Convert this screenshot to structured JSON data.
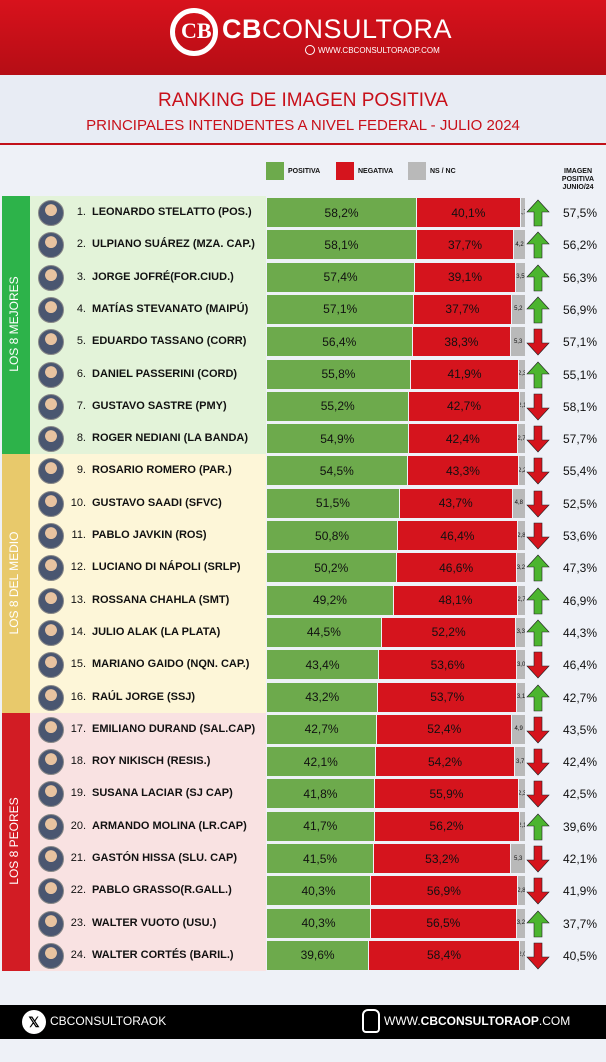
{
  "brand": {
    "bold": "CB",
    "light": "CONSULTORA",
    "web": "WWW.CBCONSULTORAOP.COM",
    "logo_letters": "CB"
  },
  "title": "RANKING DE IMAGEN POSITIVA",
  "subtitle": "PRINCIPALES INTENDENTES A NIVEL FEDERAL - JULIO 2024",
  "legend": {
    "positiva": "POSITIVA",
    "negativa": "NEGATIVA",
    "nsnc": "NS / NC"
  },
  "prev_header": [
    "IMAGEN",
    "POSITIVA",
    "JUNIO/24"
  ],
  "groups": [
    {
      "label": "LOS 8 MEJORES",
      "color": "#2db34a",
      "bg": "#e3f3d9"
    },
    {
      "label": "LOS 8 DEL MEDIO",
      "color": "#e8c96b",
      "bg": "#fdf6d8"
    },
    {
      "label": "LOS 8 PEORES",
      "color": "#d21c24",
      "bg": "#f9e2e2"
    }
  ],
  "colors": {
    "positiva": "#6daa4c",
    "negativa": "#d5141d",
    "nsnc": "#b9b9b9",
    "up": "#4cb52f",
    "down": "#d5141d"
  },
  "chart_data": {
    "type": "bar",
    "stacked": true,
    "orientation": "horizontal",
    "categories": [
      "LEONARDO STELATTO (POS.)",
      "ULPIANO SUÁREZ (MZA. CAP.)",
      "JORGE JOFRÉ(FOR.CIUD.)",
      "MATÍAS STEVANATO (MAIPÚ)",
      "EDUARDO TASSANO (CORR)",
      "DANIEL PASSERINI (CORD)",
      "GUSTAVO SASTRE (PMY)",
      "ROGER NEDIANI (LA BANDA)",
      "ROSARIO ROMERO (PAR.)",
      "GUSTAVO SAADI (SFVC)",
      "PABLO JAVKIN (ROS)",
      "LUCIANO DI NÁPOLI (SRLP)",
      "ROSSANA CHAHLA (SMT)",
      "JULIO ALAK (LA PLATA)",
      "MARIANO GAIDO (NQN. CAP.)",
      "RAÚL JORGE (SSJ)",
      "EMILIANO DURAND (SAL.CAP)",
      "ROY NIKISCH (RESIS.)",
      "SUSANA LACIAR (SJ CAP)",
      "ARMANDO MOLINA (LR.CAP)",
      "GASTÓN HISSA (SLU. CAP)",
      "PABLO GRASSO(R.GALL.)",
      "WALTER VUOTO (USU.)",
      "WALTER CORTÉS (BARIL.)"
    ],
    "series": [
      {
        "name": "POSITIVA",
        "values": [
          58.2,
          58.1,
          57.4,
          57.1,
          56.4,
          55.8,
          55.2,
          54.9,
          54.5,
          51.5,
          50.8,
          50.2,
          49.2,
          44.5,
          43.4,
          43.2,
          42.7,
          42.1,
          41.8,
          41.7,
          41.5,
          40.3,
          40.3,
          39.6
        ]
      },
      {
        "name": "NEGATIVA",
        "values": [
          40.1,
          37.7,
          39.1,
          37.7,
          38.3,
          41.9,
          42.7,
          42.4,
          43.3,
          43.7,
          46.4,
          46.6,
          48.1,
          52.2,
          53.6,
          53.7,
          52.4,
          54.2,
          55.9,
          56.2,
          53.2,
          56.9,
          56.5,
          58.4
        ]
      },
      {
        "name": "NS / NC",
        "values": [
          1.7,
          4.2,
          3.5,
          5.2,
          5.3,
          2.3,
          2.1,
          2.7,
          2.2,
          4.8,
          2.8,
          3.2,
          2.7,
          3.3,
          3.0,
          3.1,
          4.9,
          3.7,
          2.3,
          2.1,
          5.3,
          2.8,
          3.2,
          2.0
        ]
      }
    ],
    "labels": {
      "positiva": [
        "58,2%",
        "58,1%",
        "57,4%",
        "57,1%",
        "56,4%",
        "55,8%",
        "55,2%",
        "54,9%",
        "54,5%",
        "51,5%",
        "50,8%",
        "50,2%",
        "49,2%",
        "44,5%",
        "43,4%",
        "43,2%",
        "42,7%",
        "42,1%",
        "41,8%",
        "41,7%",
        "41,5%",
        "40,3%",
        "40,3%",
        "39,6%"
      ],
      "negativa": [
        "40,1%",
        "37,7%",
        "39,1%",
        "37,7%",
        "38,3%",
        "41,9%",
        "42,7%",
        "42,4%",
        "43,3%",
        "43,7%",
        "46,4%",
        "46,6%",
        "48,1%",
        "52,2%",
        "53,6%",
        "53,7%",
        "52,4%",
        "54,2%",
        "55,9%",
        "56,2%",
        "53,2%",
        "56,9%",
        "56,5%",
        "58,4%"
      ],
      "nsnc": [
        "1,7",
        "4,2",
        "3,5",
        "5,2",
        "5,3",
        "2,3",
        "2,1",
        "2,7",
        "2,2",
        "4,8",
        "2,8",
        "3,2",
        "2,7",
        "3,3",
        "3,0",
        "3,1",
        "4,9",
        "3,7",
        "2,3",
        "2,1",
        "5,3",
        "2,8",
        "3,2",
        "2,0"
      ]
    },
    "trend": [
      "up",
      "up",
      "up",
      "up",
      "down",
      "up",
      "down",
      "down",
      "down",
      "down",
      "down",
      "up",
      "up",
      "up",
      "down",
      "up",
      "down",
      "down",
      "down",
      "up",
      "down",
      "down",
      "up",
      "down"
    ],
    "previous_positive": [
      "57,5%",
      "56,2%",
      "56,3%",
      "56,9%",
      "57,1%",
      "55,1%",
      "58,1%",
      "57,7%",
      "55,4%",
      "52,5%",
      "53,6%",
      "47,3%",
      "46,9%",
      "44,3%",
      "46,4%",
      "42,7%",
      "43,5%",
      "42,4%",
      "42,5%",
      "39,6%",
      "42,1%",
      "41,9%",
      "37,7%",
      "40,5%"
    ],
    "xlim": [
      0,
      100
    ]
  },
  "footer": {
    "social": "CBCONSULTORAOK",
    "website_prefix": "WWW.",
    "website_main": "CBCONSULTORAOP",
    "website_suffix": ".COM"
  }
}
